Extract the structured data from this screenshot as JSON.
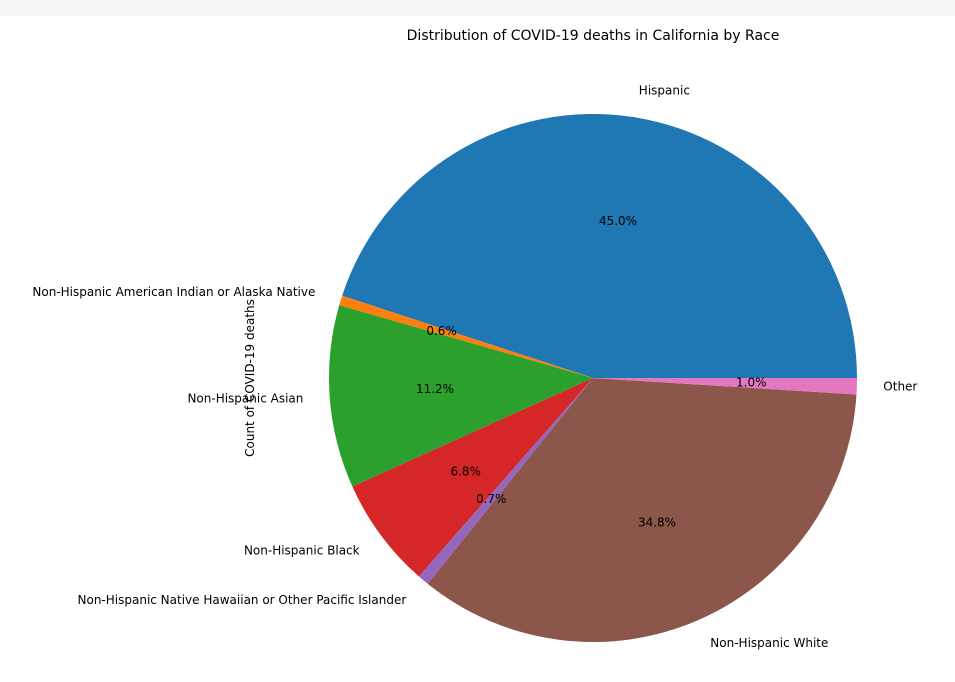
{
  "chart_data": {
    "type": "pie",
    "title": "Distribution of COVID-19 deaths in California by Race",
    "ylabel": "Count of COVID-19 deaths",
    "categories": [
      "Hispanic",
      "Non-Hispanic American Indian or Alaska Native",
      "Non-Hispanic Asian",
      "Non-Hispanic Black",
      "Non-Hispanic Native Hawaiian or Other Pacific Islander",
      "Non-Hispanic White",
      "Other"
    ],
    "values": [
      45.0,
      0.6,
      11.2,
      6.8,
      0.7,
      34.8,
      1.0
    ],
    "percent_labels": [
      "45.0%",
      "0.6%",
      "11.2%",
      "6.8%",
      "0.7%",
      "34.8%",
      "1.0%"
    ],
    "colors": [
      "#1f77b4",
      "#ff7f0e",
      "#2ca02c",
      "#d62728",
      "#9467bd",
      "#8c564b",
      "#e377c2"
    ],
    "start_angle_deg": 0,
    "direction": "counterclockwise",
    "legend": "none"
  }
}
